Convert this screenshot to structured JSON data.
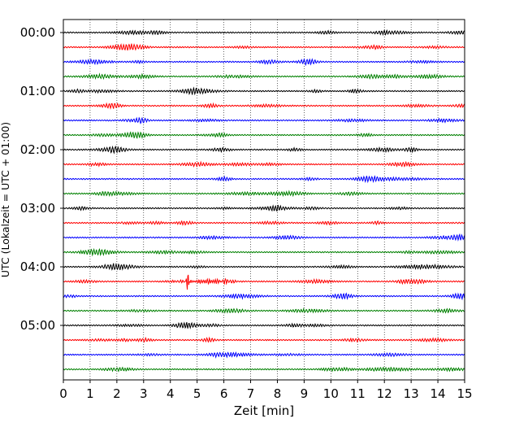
{
  "chart_data": {
    "type": "line",
    "title": "",
    "xlabel": "Zeit  [min]",
    "ylabel": "UTC (Lokalzeit = UTC + 01:00)",
    "xlim": [
      0,
      15
    ],
    "x_ticks": [
      0,
      1,
      2,
      3,
      4,
      5,
      6,
      7,
      8,
      9,
      10,
      11,
      12,
      13,
      14,
      15
    ],
    "y_tick_labels": [
      "00:00",
      "01:00",
      "02:00",
      "03:00",
      "04:00",
      "05:00"
    ],
    "grid": "vertical dotted",
    "trace_interval_minutes": 15,
    "trace_count": 24,
    "trace_colors": [
      "#000000",
      "#ff0000",
      "#0000ff",
      "#008000"
    ],
    "events": [
      {
        "trace_start": "04:15",
        "minute": 4.65,
        "color": "#ff0000",
        "description": "large spike"
      }
    ]
  }
}
